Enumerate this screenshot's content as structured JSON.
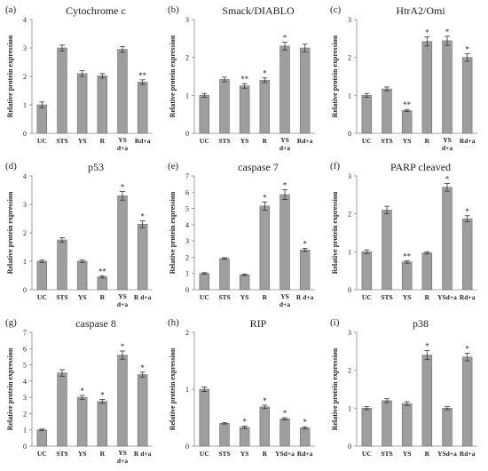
{
  "figure": {
    "domain": "Chart"
  },
  "chart_data": [
    {
      "type": "bar",
      "letter": "(a)",
      "title": "Cytochrome c",
      "ylabel": "Relative protein expression",
      "ylim": [
        0,
        4
      ],
      "yticks": [
        0,
        1,
        2,
        3,
        4
      ],
      "categories": [
        "UC",
        "STS",
        "YS",
        "R",
        "YS d+a",
        "Rd+a"
      ],
      "values": [
        1.0,
        3.0,
        2.1,
        2.02,
        2.95,
        1.8
      ],
      "errors": [
        0.1,
        0.1,
        0.1,
        0.08,
        0.1,
        0.08
      ],
      "annotations": [
        "",
        "",
        "",
        "",
        "",
        "**"
      ],
      "bar_color": "#9e9e9e"
    },
    {
      "type": "bar",
      "letter": "(b)",
      "title": "Smack/DIABLO",
      "ylabel": "Relative protein expression",
      "ylim": [
        0,
        3
      ],
      "yticks": [
        0,
        1,
        2,
        3
      ],
      "categories": [
        "UC",
        "STS",
        "YS",
        "R",
        "YS d+a",
        "Rd+a"
      ],
      "values": [
        1.0,
        1.42,
        1.25,
        1.4,
        2.3,
        2.25
      ],
      "errors": [
        0.05,
        0.06,
        0.06,
        0.06,
        0.1,
        0.1
      ],
      "annotations": [
        "",
        "",
        "**",
        "*",
        "*",
        ""
      ],
      "bar_color": "#9e9e9e"
    },
    {
      "type": "bar",
      "letter": "(c)",
      "title": "HtrA2/Omi",
      "ylabel": "Relative protein expression",
      "ylim": [
        0,
        3
      ],
      "yticks": [
        0,
        1,
        2,
        3
      ],
      "categories": [
        "UC",
        "STS",
        "YS",
        "R",
        "YS d+a",
        "Rd+a"
      ],
      "values": [
        1.0,
        1.17,
        0.6,
        2.42,
        2.44,
        2.0
      ],
      "errors": [
        0.05,
        0.05,
        0.03,
        0.12,
        0.12,
        0.1
      ],
      "annotations": [
        "",
        "",
        "**",
        "*",
        "*",
        "*"
      ],
      "bar_color": "#9e9e9e"
    },
    {
      "type": "bar",
      "letter": "(d)",
      "title": "p53",
      "ylabel": "Relative protein expression",
      "ylim": [
        0,
        4
      ],
      "yticks": [
        0,
        1,
        2,
        3,
        4
      ],
      "categories": [
        "UC",
        "STS",
        "YS",
        "R",
        "YS d+a",
        "R d+a"
      ],
      "values": [
        1.0,
        1.75,
        1.0,
        0.45,
        3.3,
        2.3
      ],
      "errors": [
        0.04,
        0.08,
        0.04,
        0.04,
        0.15,
        0.12
      ],
      "annotations": [
        "",
        "",
        "",
        "**",
        "*",
        "*"
      ],
      "bar_color": "#9e9e9e"
    },
    {
      "type": "bar",
      "letter": "(e)",
      "title": "caspase 7",
      "ylabel": "Relative protein expression",
      "ylim": [
        0,
        7
      ],
      "yticks": [
        0,
        1,
        2,
        3,
        4,
        5,
        6,
        7
      ],
      "categories": [
        "UC",
        "STS",
        "YS",
        "R",
        "YS d+a",
        "R d+a"
      ],
      "values": [
        1.0,
        1.92,
        0.92,
        5.15,
        5.85,
        2.45
      ],
      "errors": [
        0.05,
        0.05,
        0.05,
        0.25,
        0.3,
        0.1
      ],
      "annotations": [
        "",
        "",
        "",
        "*",
        "*",
        "*"
      ],
      "bar_color": "#9e9e9e"
    },
    {
      "type": "bar",
      "letter": "(f)",
      "title": "PARP cleaved",
      "ylabel": "Relative protein expression",
      "ylim": [
        0,
        3
      ],
      "yticks": [
        0,
        1,
        2,
        3
      ],
      "categories": [
        "UC",
        "STS",
        "YS",
        "R",
        "YSd+a",
        "Rd+a"
      ],
      "values": [
        1.0,
        2.1,
        0.73,
        0.97,
        2.7,
        1.87
      ],
      "errors": [
        0.05,
        0.1,
        0.03,
        0.03,
        0.1,
        0.08
      ],
      "annotations": [
        "",
        "",
        "**",
        "",
        "*",
        "*"
      ],
      "bar_color": "#9e9e9e"
    },
    {
      "type": "bar",
      "letter": "(g)",
      "title": "caspase 8",
      "ylabel": "Relative protein expression",
      "ylim": [
        0,
        7
      ],
      "yticks": [
        0,
        1,
        2,
        3,
        4,
        5,
        6,
        7
      ],
      "categories": [
        "UC",
        "STS",
        "YS",
        "R",
        "YS d+a",
        "R d+a"
      ],
      "values": [
        1.0,
        4.5,
        3.0,
        2.75,
        5.6,
        4.4
      ],
      "errors": [
        0.05,
        0.2,
        0.12,
        0.12,
        0.25,
        0.15
      ],
      "annotations": [
        "",
        "",
        "*",
        "*",
        "*",
        "*"
      ],
      "bar_color": "#9e9e9e"
    },
    {
      "type": "bar",
      "letter": "(h)",
      "title": "RIP",
      "ylabel": "Relative protein expression",
      "ylim": [
        0,
        2
      ],
      "yticks": [
        0,
        1,
        2
      ],
      "categories": [
        "UC",
        "STS",
        "YS",
        "R",
        "YSd+a",
        "Rd+a"
      ],
      "values": [
        1.0,
        0.4,
        0.33,
        0.69,
        0.48,
        0.32
      ],
      "errors": [
        0.04,
        0.01,
        0.02,
        0.03,
        0.02,
        0.02
      ],
      "annotations": [
        "",
        "",
        "*",
        "*",
        "*",
        "*"
      ],
      "bar_color": "#9e9e9e"
    },
    {
      "type": "bar",
      "letter": "(i)",
      "title": "p38",
      "ylabel": "Relative protein expression",
      "ylim": [
        0,
        3
      ],
      "yticks": [
        0,
        1,
        2,
        3
      ],
      "categories": [
        "UC",
        "STS",
        "YS",
        "R",
        "YSd+a",
        "Rd+a"
      ],
      "values": [
        1.0,
        1.2,
        1.12,
        2.4,
        1.0,
        2.35
      ],
      "errors": [
        0.04,
        0.05,
        0.05,
        0.12,
        0.04,
        0.1
      ],
      "annotations": [
        "",
        "",
        "",
        "*",
        "",
        "*"
      ],
      "bar_color": "#9e9e9e"
    }
  ]
}
